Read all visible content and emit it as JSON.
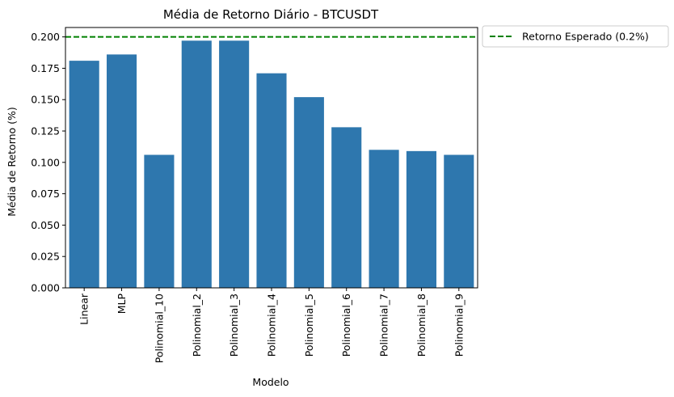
{
  "chart_data": {
    "type": "bar",
    "title": "Média de Retorno Diário - BTCUSDT",
    "xlabel": "Modelo",
    "ylabel": "Média de Retorno (%)",
    "categories": [
      "Linear",
      "MLP",
      "Polinomial_10",
      "Polinomial_2",
      "Polinomial_3",
      "Polinomial_4",
      "Polinomial_5",
      "Polinomial_6",
      "Polinomial_7",
      "Polinomial_8",
      "Polinomial_9"
    ],
    "values": [
      0.181,
      0.186,
      0.106,
      0.197,
      0.197,
      0.171,
      0.152,
      0.128,
      0.11,
      0.109,
      0.106
    ],
    "ylim": [
      0,
      0.2075
    ],
    "yticks": [
      "0.000",
      "0.025",
      "0.050",
      "0.075",
      "0.100",
      "0.125",
      "0.150",
      "0.175",
      "0.200"
    ],
    "reference_line": {
      "label": "Retorno Esperado (0.2%)",
      "value": 0.2,
      "color": "#008000",
      "style": "dashed"
    },
    "bar_color": "#2e77ae",
    "legend_position": "outside-top-right",
    "grid": false
  }
}
